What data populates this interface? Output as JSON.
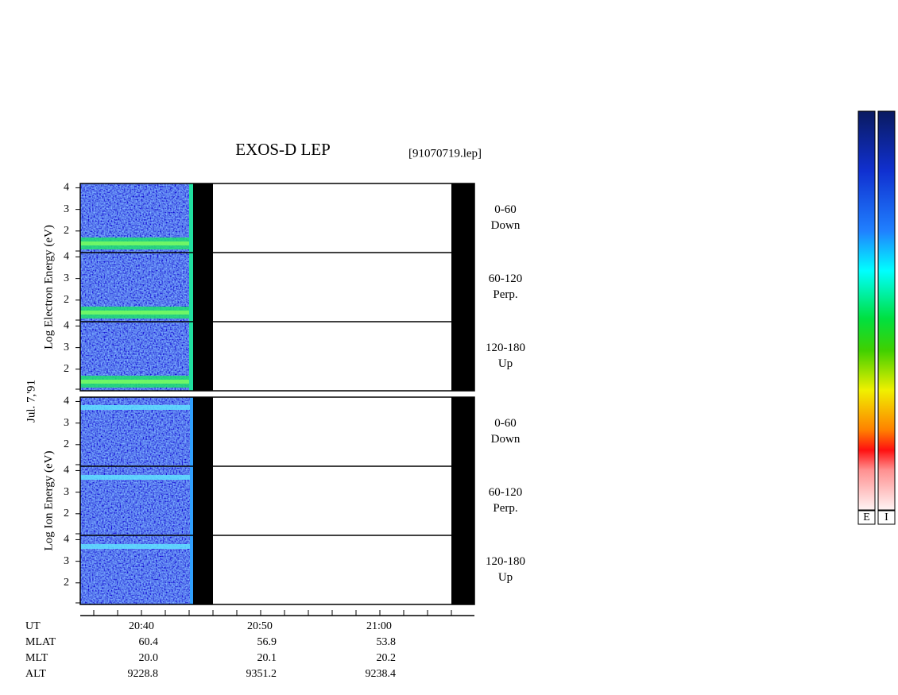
{
  "header": {
    "title": "EXOS-D LEP",
    "file": "[91070719.lep]"
  },
  "date": "Jul. 7,'91",
  "ylim": [
    1,
    4.2
  ],
  "yticks": [
    2,
    3,
    4
  ],
  "panels": [
    {
      "ylabel": "Log Electron Energy (eV)",
      "subpanels": [
        {
          "range": "0-60",
          "direction": "Down"
        },
        {
          "range": "60-120",
          "direction": "Perp."
        },
        {
          "range": "120-180",
          "direction": "Up"
        }
      ]
    },
    {
      "ylabel": "Log Ion Energy (eV)",
      "subpanels": [
        {
          "range": "0-60",
          "direction": "Down"
        },
        {
          "range": "60-120",
          "direction": "Perp."
        },
        {
          "range": "120-180",
          "direction": "Up"
        }
      ]
    }
  ],
  "ephemeris": {
    "rows": [
      {
        "label": "UT",
        "values": [
          "20:40",
          "20:50",
          "21:00"
        ]
      },
      {
        "label": "MLAT",
        "values": [
          "60.4",
          "56.9",
          "53.8"
        ]
      },
      {
        "label": "MLT",
        "values": [
          "20.0",
          "20.1",
          "20.2"
        ]
      },
      {
        "label": "ALT",
        "values": [
          "9228.8",
          "9351.2",
          "9238.4"
        ]
      }
    ]
  },
  "colorbars": [
    "E",
    "I"
  ]
}
